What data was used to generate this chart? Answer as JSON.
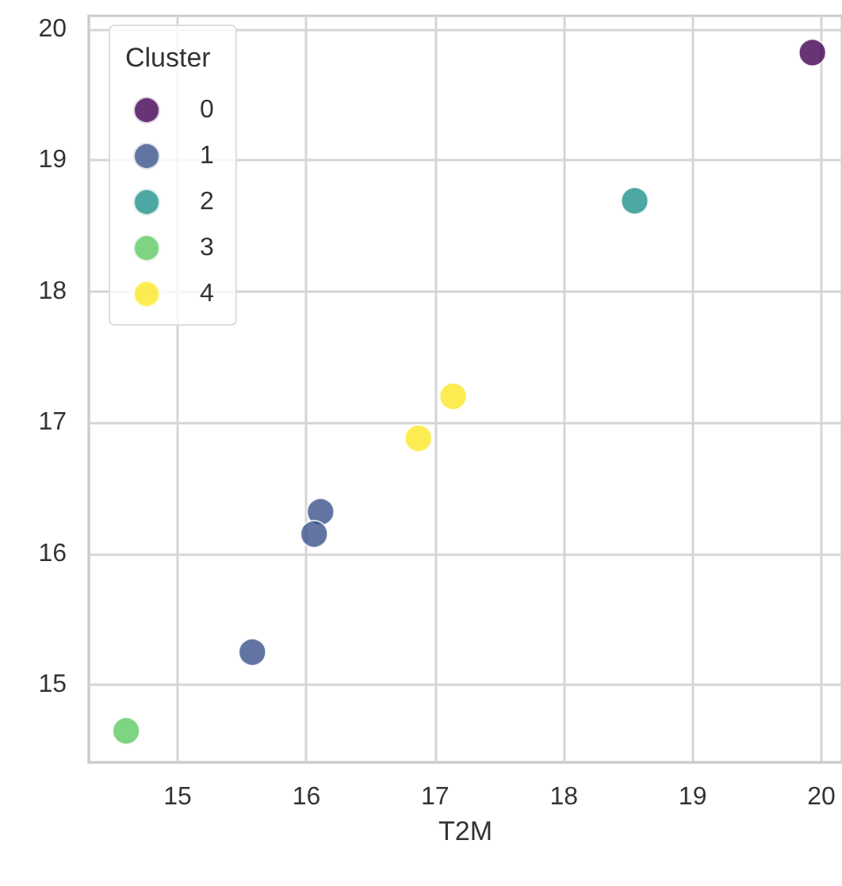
{
  "chart_data": {
    "type": "scatter",
    "xlabel": "T2M",
    "legend_title": "Cluster",
    "legend": "top left",
    "grid": true,
    "marker": "circle",
    "xlim": [
      14.31,
      20.16
    ],
    "ylim": [
      14.41,
      20.1
    ],
    "xticks": [
      15,
      16,
      17,
      18,
      19,
      20
    ],
    "yticks": [
      15,
      16,
      17,
      18,
      19,
      20
    ],
    "series": [
      {
        "name": "0",
        "color": "#440154",
        "x": [
          19.93
        ],
        "values": [
          19.82
        ]
      },
      {
        "name": "1",
        "color": "#3b528b",
        "x": [
          16.11,
          16.06,
          15.58
        ],
        "values": [
          16.32,
          16.15,
          15.25
        ]
      },
      {
        "name": "2",
        "color": "#21918c",
        "x": [
          18.55
        ],
        "values": [
          18.69
        ]
      },
      {
        "name": "3",
        "color": "#5ec962",
        "x": [
          14.6
        ],
        "values": [
          14.65
        ]
      },
      {
        "name": "4",
        "color": "#fde725",
        "x": [
          17.14,
          16.87
        ],
        "values": [
          17.2,
          16.88
        ]
      }
    ]
  }
}
